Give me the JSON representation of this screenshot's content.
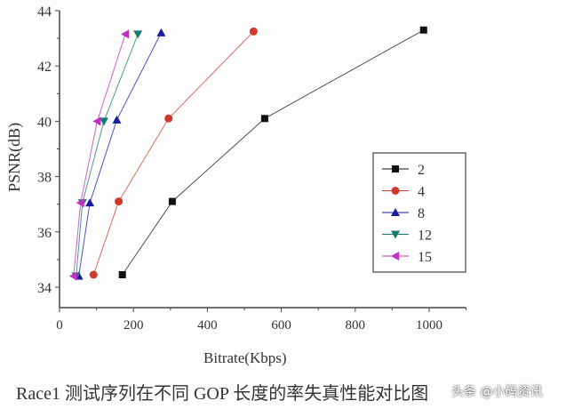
{
  "chart_data": {
    "type": "line",
    "title": "",
    "xlabel": "Bitrate(Kbps)",
    "ylabel": "PSNR(dB)",
    "xlim": [
      0,
      1100
    ],
    "ylim": [
      33.3,
      44
    ],
    "xticks": [
      0,
      200,
      400,
      600,
      800,
      1000
    ],
    "yticks": [
      34,
      36,
      38,
      40,
      42,
      44
    ],
    "grid": false,
    "legend_position": "right",
    "series": [
      {
        "name": "2",
        "color": "#111111",
        "marker": "square",
        "x": [
          170,
          305,
          555,
          985
        ],
        "y": [
          34.45,
          37.1,
          40.1,
          43.3
        ]
      },
      {
        "name": "4",
        "color": "#d03a2e",
        "marker": "circle",
        "x": [
          92,
          160,
          295,
          525
        ],
        "y": [
          34.45,
          37.1,
          40.1,
          43.25
        ]
      },
      {
        "name": "8",
        "color": "#1a1aa0",
        "marker": "triangle-up",
        "x": [
          52,
          82,
          155,
          275
        ],
        "y": [
          34.4,
          37.05,
          40.05,
          43.2
        ]
      },
      {
        "name": "12",
        "color": "#137a6e",
        "marker": "triangle-down",
        "x": [
          45,
          62,
          120,
          212
        ],
        "y": [
          34.4,
          37.05,
          40.0,
          43.15
        ]
      },
      {
        "name": "15",
        "color": "#c030c0",
        "marker": "triangle-left",
        "x": [
          38,
          57,
          102,
          178
        ],
        "y": [
          34.4,
          37.05,
          40.0,
          43.15
        ]
      }
    ]
  },
  "caption": "Race1 测试序列在不同 GOP 长度的率失真性能对比图",
  "watermark": "头条 @小码资讯"
}
